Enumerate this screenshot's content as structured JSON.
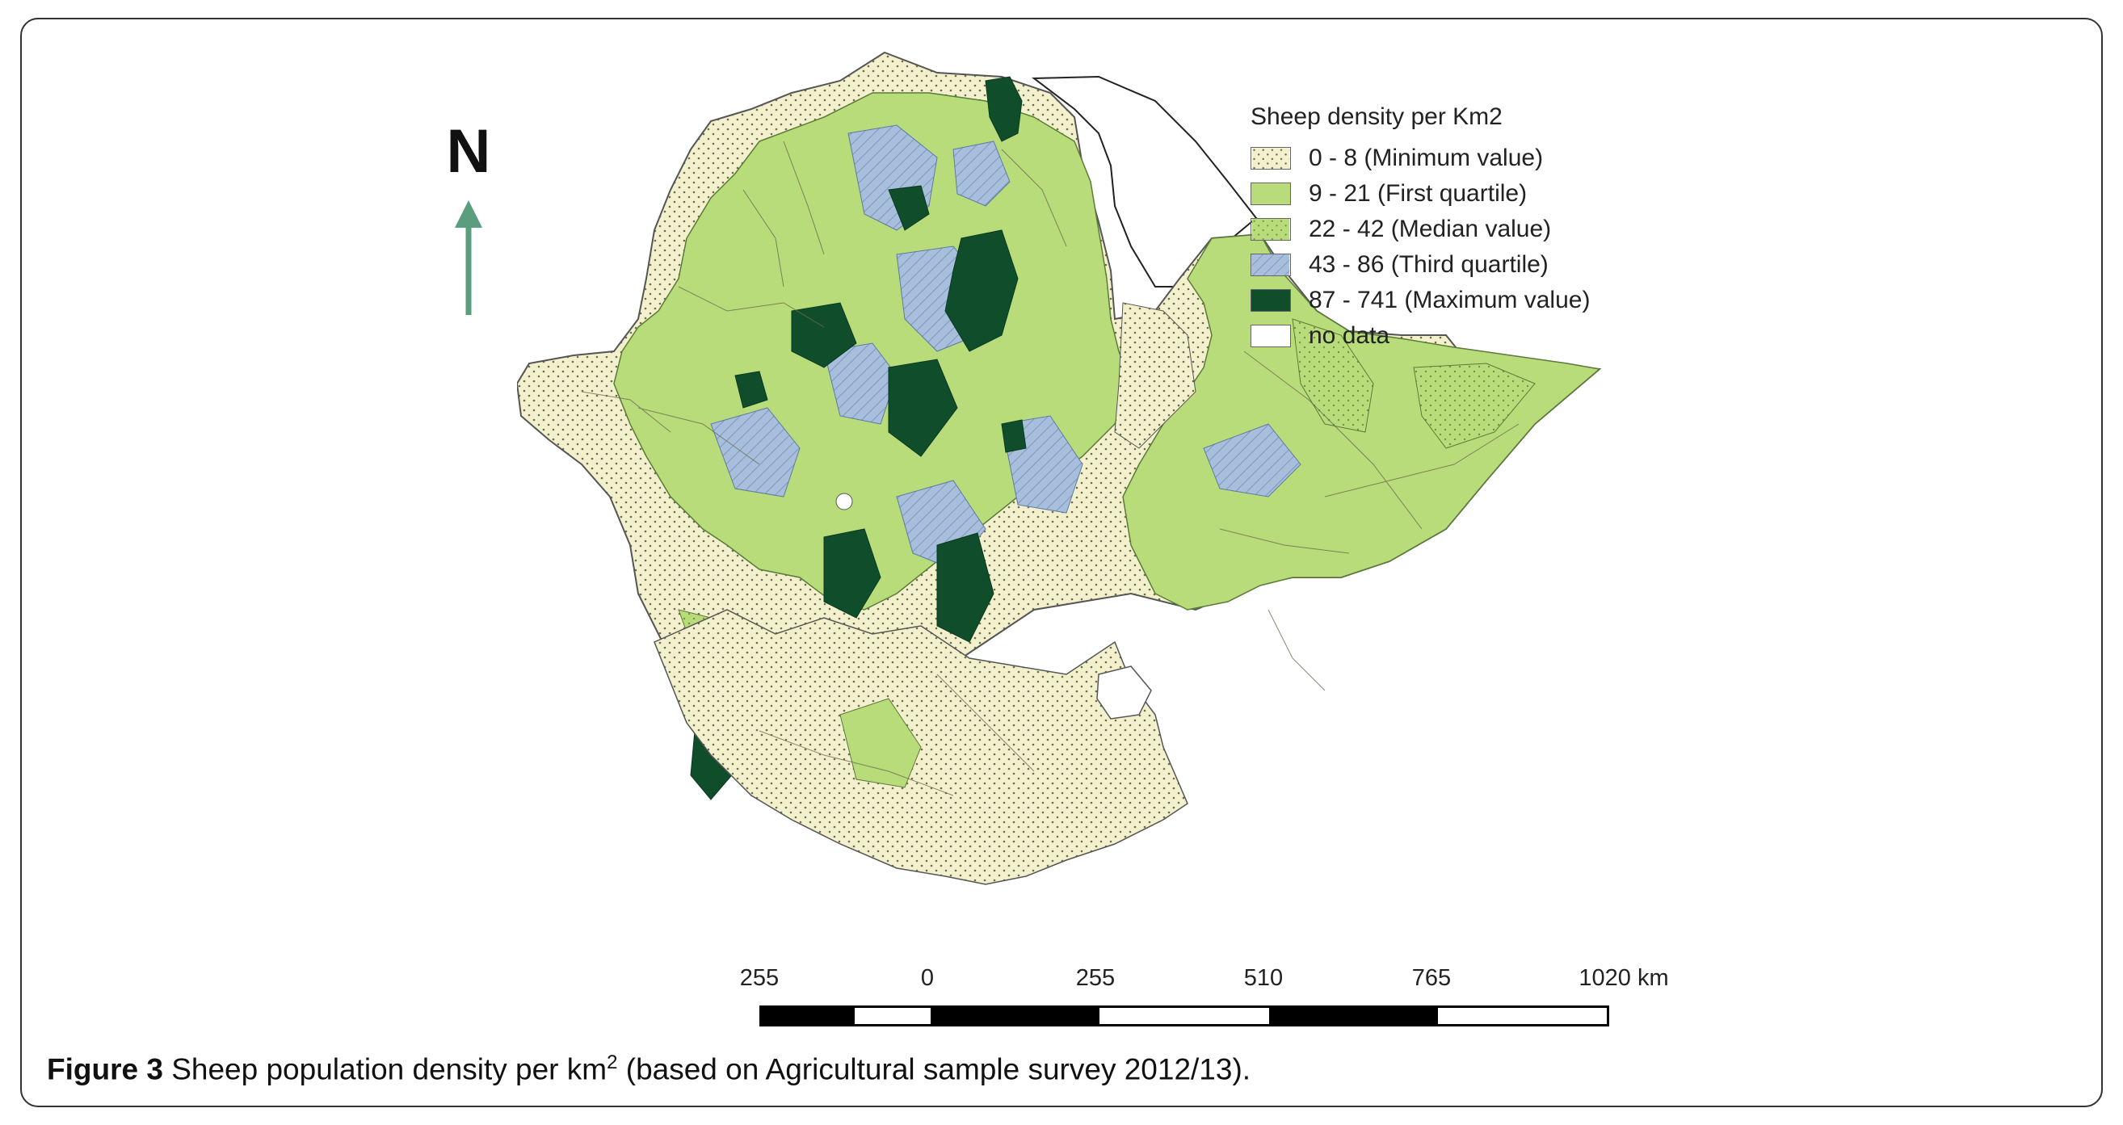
{
  "north": {
    "label": "N",
    "arrow_color": "#5a9e7e"
  },
  "legend": {
    "title": "Sheep density per Km2",
    "items": [
      {
        "label": "0 - 8 (Minimum value)",
        "color": "#f3f1cd",
        "pattern": "dots"
      },
      {
        "label": "9 - 21 (First quartile)",
        "color": "#b9dc7a",
        "pattern": "solid"
      },
      {
        "label": "22 - 42 (Median value)",
        "color": "#b9dc7a",
        "pattern": "dots"
      },
      {
        "label": "43 - 86 (Third quartile)",
        "color": "#a7bedc",
        "pattern": "hatch"
      },
      {
        "label": "87 - 741 (Maximum value)",
        "color": "#0f4d2b",
        "pattern": "solid"
      },
      {
        "label": "no data",
        "color": "#ffffff",
        "pattern": "solid"
      }
    ]
  },
  "scale": {
    "ticks": [
      "255",
      "0",
      "255",
      "510",
      "765",
      "1020 km"
    ]
  },
  "caption": {
    "figure": "Figure 3",
    "text_before": "Sheep population density per km",
    "superscript": "2",
    "text_after": "(based on Agricultural sample survey 2012/13)."
  }
}
